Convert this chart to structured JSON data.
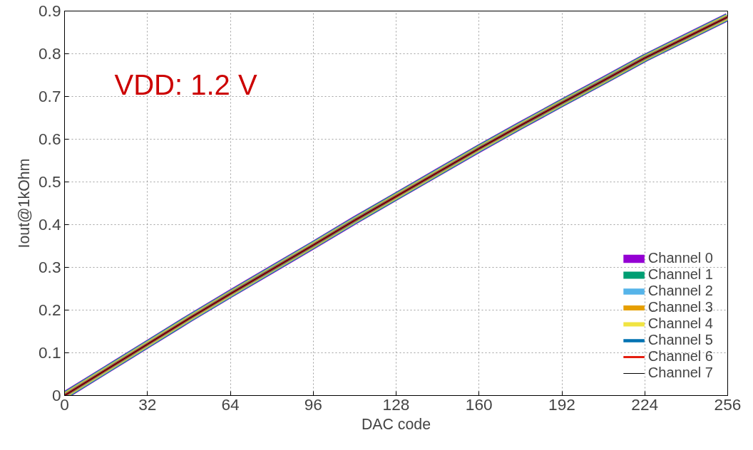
{
  "chart_data": {
    "type": "line",
    "xlabel": "DAC code",
    "ylabel": "Iout@1kOhm",
    "annotations": [
      "VDD: 1.2 V"
    ],
    "x": [
      0,
      16,
      32,
      48,
      64,
      80,
      96,
      112,
      128,
      144,
      160,
      176,
      192,
      208,
      224,
      240,
      256
    ],
    "series": [
      {
        "name": "Channel 0",
        "color": "#9400d3",
        "values": [
          0,
          0.06,
          0.12,
          0.18,
          0.238,
          0.295,
          0.352,
          0.41,
          0.466,
          0.522,
          0.578,
          0.632,
          0.685,
          0.737,
          0.79,
          0.838,
          0.886
        ]
      },
      {
        "name": "Channel 1",
        "color": "#009e73",
        "values": [
          0,
          0.06,
          0.12,
          0.18,
          0.238,
          0.295,
          0.352,
          0.41,
          0.466,
          0.522,
          0.578,
          0.632,
          0.685,
          0.737,
          0.79,
          0.838,
          0.886
        ]
      },
      {
        "name": "Channel 2",
        "color": "#56b4e9",
        "values": [
          0,
          0.06,
          0.12,
          0.18,
          0.238,
          0.295,
          0.352,
          0.41,
          0.466,
          0.522,
          0.578,
          0.632,
          0.685,
          0.737,
          0.79,
          0.838,
          0.886
        ]
      },
      {
        "name": "Channel 3",
        "color": "#e69f00",
        "values": [
          0,
          0.06,
          0.12,
          0.18,
          0.238,
          0.295,
          0.352,
          0.41,
          0.466,
          0.522,
          0.578,
          0.632,
          0.685,
          0.737,
          0.79,
          0.838,
          0.886
        ]
      },
      {
        "name": "Channel 4",
        "color": "#f0e442",
        "values": [
          0,
          0.06,
          0.12,
          0.18,
          0.238,
          0.295,
          0.352,
          0.41,
          0.466,
          0.522,
          0.578,
          0.632,
          0.685,
          0.737,
          0.79,
          0.838,
          0.886
        ]
      },
      {
        "name": "Channel 5",
        "color": "#0072b2",
        "values": [
          0,
          0.06,
          0.12,
          0.18,
          0.238,
          0.295,
          0.352,
          0.41,
          0.466,
          0.522,
          0.578,
          0.632,
          0.685,
          0.737,
          0.79,
          0.838,
          0.886
        ]
      },
      {
        "name": "Channel 6",
        "color": "#e51e10",
        "values": [
          0,
          0.06,
          0.12,
          0.18,
          0.238,
          0.295,
          0.352,
          0.41,
          0.466,
          0.522,
          0.578,
          0.632,
          0.685,
          0.737,
          0.79,
          0.838,
          0.886
        ]
      },
      {
        "name": "Channel 7",
        "color": "#000000",
        "values": [
          0,
          0.06,
          0.12,
          0.18,
          0.238,
          0.295,
          0.352,
          0.41,
          0.466,
          0.522,
          0.578,
          0.632,
          0.685,
          0.737,
          0.79,
          0.838,
          0.886
        ]
      }
    ],
    "xlim": [
      0,
      256
    ],
    "ylim": [
      0,
      0.9
    ],
    "xticks": [
      0,
      32,
      64,
      96,
      128,
      160,
      192,
      224,
      256
    ],
    "yticks": [
      0,
      0.1,
      0.2,
      0.3,
      0.4,
      0.5,
      0.6,
      0.7,
      0.8,
      0.9
    ],
    "grid": true,
    "legend": "bottom right",
    "marker": "none",
    "line_style": "solid"
  }
}
